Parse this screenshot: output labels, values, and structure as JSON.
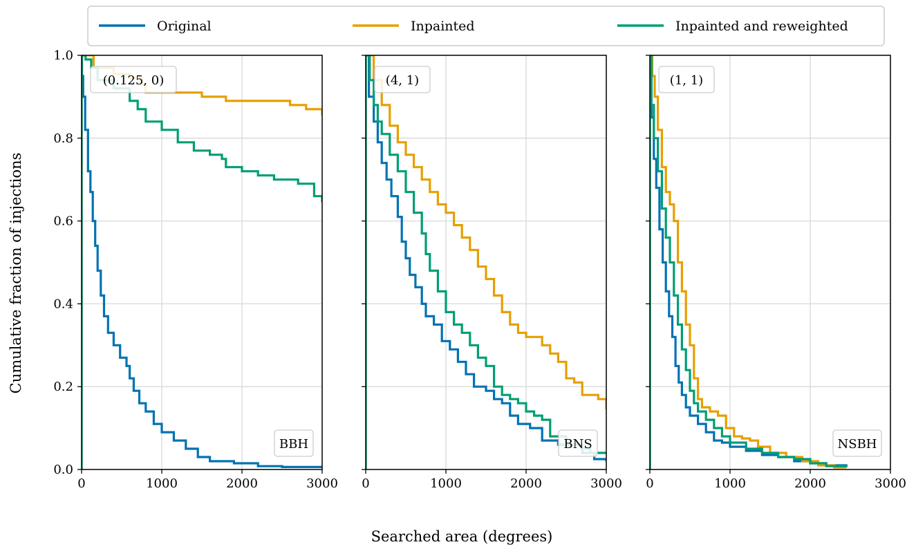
{
  "chart_data": {
    "type": "line",
    "shared_y": true,
    "xlabel": "Searched area (degrees)",
    "ylabel": "Cumulative fraction of injections",
    "xlim": [
      0,
      3000
    ],
    "ylim": [
      0,
      1.0
    ],
    "x_ticks": [
      "0",
      "1000",
      "2000",
      "3000"
    ],
    "y_ticks": [
      "0.0",
      "0.2",
      "0.4",
      "0.6",
      "0.8",
      "1.0"
    ],
    "grid": true,
    "legend": {
      "placement": "top",
      "entries": [
        {
          "name": "Original",
          "color": "#0072b2"
        },
        {
          "name": "Inpainted",
          "color": "#e69f00"
        },
        {
          "name": "Inpainted and reweighted",
          "color": "#009e73"
        }
      ]
    },
    "panels": [
      {
        "param_label": "(0.125, 0)",
        "class_label": "BBH",
        "series": [
          {
            "name": "Original",
            "color": "#0072b2",
            "points": [
              [
                0,
                1.0
              ],
              [
                5,
                0.95
              ],
              [
                20,
                0.9
              ],
              [
                45,
                0.82
              ],
              [
                80,
                0.72
              ],
              [
                110,
                0.67
              ],
              [
                140,
                0.6
              ],
              [
                170,
                0.54
              ],
              [
                200,
                0.48
              ],
              [
                240,
                0.42
              ],
              [
                280,
                0.37
              ],
              [
                330,
                0.33
              ],
              [
                400,
                0.3
              ],
              [
                480,
                0.27
              ],
              [
                560,
                0.25
              ],
              [
                600,
                0.22
              ],
              [
                650,
                0.19
              ],
              [
                720,
                0.16
              ],
              [
                800,
                0.14
              ],
              [
                900,
                0.11
              ],
              [
                1000,
                0.09
              ],
              [
                1150,
                0.07
              ],
              [
                1300,
                0.05
              ],
              [
                1450,
                0.03
              ],
              [
                1600,
                0.02
              ],
              [
                1900,
                0.015
              ],
              [
                2200,
                0.008
              ],
              [
                2500,
                0.006
              ],
              [
                3000,
                0.006
              ]
            ]
          },
          {
            "name": "Inpainted",
            "color": "#e69f00",
            "points": [
              [
                0,
                1.0
              ],
              [
                150,
                0.97
              ],
              [
                400,
                0.955
              ],
              [
                600,
                0.945
              ],
              [
                750,
                0.93
              ],
              [
                800,
                0.91
              ],
              [
                1200,
                0.91
              ],
              [
                1500,
                0.9
              ],
              [
                1800,
                0.89
              ],
              [
                2200,
                0.89
              ],
              [
                2600,
                0.88
              ],
              [
                2800,
                0.87
              ],
              [
                3000,
                0.855
              ]
            ]
          },
          {
            "name": "Inpainted and reweighted",
            "color": "#009e73",
            "points": [
              [
                0,
                1.0
              ],
              [
                50,
                0.99
              ],
              [
                120,
                0.97
              ],
              [
                200,
                0.94
              ],
              [
                400,
                0.92
              ],
              [
                600,
                0.89
              ],
              [
                700,
                0.87
              ],
              [
                800,
                0.84
              ],
              [
                1000,
                0.82
              ],
              [
                1200,
                0.79
              ],
              [
                1400,
                0.77
              ],
              [
                1600,
                0.76
              ],
              [
                1750,
                0.75
              ],
              [
                1800,
                0.73
              ],
              [
                2000,
                0.72
              ],
              [
                2200,
                0.71
              ],
              [
                2400,
                0.7
              ],
              [
                2700,
                0.69
              ],
              [
                2900,
                0.66
              ],
              [
                3000,
                0.645
              ]
            ]
          }
        ]
      },
      {
        "param_label": "(4, 1)",
        "class_label": "BNS",
        "series": [
          {
            "name": "Original",
            "color": "#0072b2",
            "points": [
              [
                0,
                1.0
              ],
              [
                40,
                0.9
              ],
              [
                100,
                0.84
              ],
              [
                150,
                0.79
              ],
              [
                200,
                0.74
              ],
              [
                260,
                0.7
              ],
              [
                320,
                0.66
              ],
              [
                400,
                0.61
              ],
              [
                450,
                0.55
              ],
              [
                500,
                0.51
              ],
              [
                550,
                0.47
              ],
              [
                620,
                0.44
              ],
              [
                700,
                0.4
              ],
              [
                750,
                0.37
              ],
              [
                850,
                0.35
              ],
              [
                950,
                0.31
              ],
              [
                1050,
                0.29
              ],
              [
                1150,
                0.26
              ],
              [
                1250,
                0.23
              ],
              [
                1350,
                0.2
              ],
              [
                1500,
                0.19
              ],
              [
                1600,
                0.17
              ],
              [
                1700,
                0.16
              ],
              [
                1800,
                0.13
              ],
              [
                1900,
                0.11
              ],
              [
                2050,
                0.1
              ],
              [
                2200,
                0.07
              ],
              [
                2400,
                0.06
              ],
              [
                2700,
                0.04
              ],
              [
                2850,
                0.025
              ],
              [
                3000,
                0.02
              ]
            ]
          },
          {
            "name": "Inpainted",
            "color": "#e69f00",
            "points": [
              [
                0,
                1.0
              ],
              [
                100,
                0.94
              ],
              [
                200,
                0.88
              ],
              [
                300,
                0.83
              ],
              [
                400,
                0.79
              ],
              [
                500,
                0.76
              ],
              [
                600,
                0.73
              ],
              [
                700,
                0.7
              ],
              [
                800,
                0.67
              ],
              [
                900,
                0.64
              ],
              [
                1000,
                0.62
              ],
              [
                1100,
                0.59
              ],
              [
                1200,
                0.56
              ],
              [
                1300,
                0.53
              ],
              [
                1400,
                0.49
              ],
              [
                1500,
                0.46
              ],
              [
                1600,
                0.42
              ],
              [
                1700,
                0.38
              ],
              [
                1800,
                0.35
              ],
              [
                1900,
                0.33
              ],
              [
                2000,
                0.32
              ],
              [
                2200,
                0.3
              ],
              [
                2300,
                0.28
              ],
              [
                2400,
                0.26
              ],
              [
                2500,
                0.22
              ],
              [
                2600,
                0.21
              ],
              [
                2700,
                0.18
              ],
              [
                2900,
                0.17
              ],
              [
                3000,
                0.145
              ]
            ]
          },
          {
            "name": "Inpainted and reweighted",
            "color": "#009e73",
            "points": [
              [
                0,
                1.0
              ],
              [
                50,
                0.94
              ],
              [
                100,
                0.88
              ],
              [
                150,
                0.84
              ],
              [
                200,
                0.81
              ],
              [
                300,
                0.76
              ],
              [
                400,
                0.72
              ],
              [
                500,
                0.67
              ],
              [
                600,
                0.62
              ],
              [
                700,
                0.57
              ],
              [
                750,
                0.52
              ],
              [
                800,
                0.48
              ],
              [
                900,
                0.43
              ],
              [
                1000,
                0.38
              ],
              [
                1100,
                0.35
              ],
              [
                1200,
                0.33
              ],
              [
                1300,
                0.3
              ],
              [
                1400,
                0.27
              ],
              [
                1500,
                0.25
              ],
              [
                1600,
                0.2
              ],
              [
                1700,
                0.18
              ],
              [
                1800,
                0.17
              ],
              [
                1900,
                0.16
              ],
              [
                2000,
                0.14
              ],
              [
                2100,
                0.13
              ],
              [
                2200,
                0.12
              ],
              [
                2300,
                0.08
              ],
              [
                2500,
                0.06
              ],
              [
                2700,
                0.05
              ],
              [
                2800,
                0.04
              ],
              [
                3000,
                0.04
              ]
            ]
          }
        ]
      },
      {
        "param_label": "(1, 1)",
        "class_label": "NSBH",
        "series": [
          {
            "name": "Original",
            "color": "#0072b2",
            "points": [
              [
                0,
                1.0
              ],
              [
                20,
                0.85
              ],
              [
                50,
                0.75
              ],
              [
                80,
                0.68
              ],
              [
                120,
                0.58
              ],
              [
                160,
                0.5
              ],
              [
                200,
                0.43
              ],
              [
                240,
                0.37
              ],
              [
                280,
                0.32
              ],
              [
                320,
                0.25
              ],
              [
                360,
                0.21
              ],
              [
                400,
                0.18
              ],
              [
                450,
                0.15
              ],
              [
                500,
                0.13
              ],
              [
                600,
                0.11
              ],
              [
                700,
                0.09
              ],
              [
                800,
                0.07
              ],
              [
                900,
                0.065
              ],
              [
                1000,
                0.055
              ],
              [
                1200,
                0.045
              ],
              [
                1400,
                0.035
              ],
              [
                1600,
                0.03
              ],
              [
                1800,
                0.02
              ],
              [
                2000,
                0.015
              ],
              [
                2200,
                0.01
              ],
              [
                2450,
                0.005
              ]
            ]
          },
          {
            "name": "Inpainted",
            "color": "#e69f00",
            "points": [
              [
                0,
                1.0
              ],
              [
                30,
                0.95
              ],
              [
                60,
                0.9
              ],
              [
                100,
                0.82
              ],
              [
                150,
                0.73
              ],
              [
                200,
                0.67
              ],
              [
                250,
                0.64
              ],
              [
                300,
                0.6
              ],
              [
                350,
                0.5
              ],
              [
                400,
                0.43
              ],
              [
                450,
                0.35
              ],
              [
                500,
                0.3
              ],
              [
                550,
                0.22
              ],
              [
                600,
                0.17
              ],
              [
                650,
                0.15
              ],
              [
                750,
                0.14
              ],
              [
                850,
                0.13
              ],
              [
                950,
                0.1
              ],
              [
                1050,
                0.08
              ],
              [
                1150,
                0.075
              ],
              [
                1250,
                0.07
              ],
              [
                1350,
                0.055
              ],
              [
                1500,
                0.04
              ],
              [
                1700,
                0.03
              ],
              [
                1900,
                0.02
              ],
              [
                2100,
                0.01
              ],
              [
                2300,
                0.005
              ],
              [
                2450,
                0.005
              ]
            ]
          },
          {
            "name": "Inpainted and reweighted",
            "color": "#009e73",
            "points": [
              [
                0,
                1.0
              ],
              [
                20,
                0.88
              ],
              [
                50,
                0.8
              ],
              [
                100,
                0.72
              ],
              [
                150,
                0.63
              ],
              [
                200,
                0.56
              ],
              [
                250,
                0.5
              ],
              [
                300,
                0.42
              ],
              [
                350,
                0.35
              ],
              [
                400,
                0.29
              ],
              [
                450,
                0.24
              ],
              [
                500,
                0.19
              ],
              [
                550,
                0.16
              ],
              [
                600,
                0.14
              ],
              [
                700,
                0.12
              ],
              [
                800,
                0.1
              ],
              [
                900,
                0.08
              ],
              [
                1000,
                0.065
              ],
              [
                1200,
                0.05
              ],
              [
                1400,
                0.04
              ],
              [
                1600,
                0.03
              ],
              [
                1800,
                0.025
              ],
              [
                2000,
                0.015
              ],
              [
                2200,
                0.008
              ],
              [
                2450,
                0.005
              ]
            ]
          }
        ]
      }
    ]
  }
}
